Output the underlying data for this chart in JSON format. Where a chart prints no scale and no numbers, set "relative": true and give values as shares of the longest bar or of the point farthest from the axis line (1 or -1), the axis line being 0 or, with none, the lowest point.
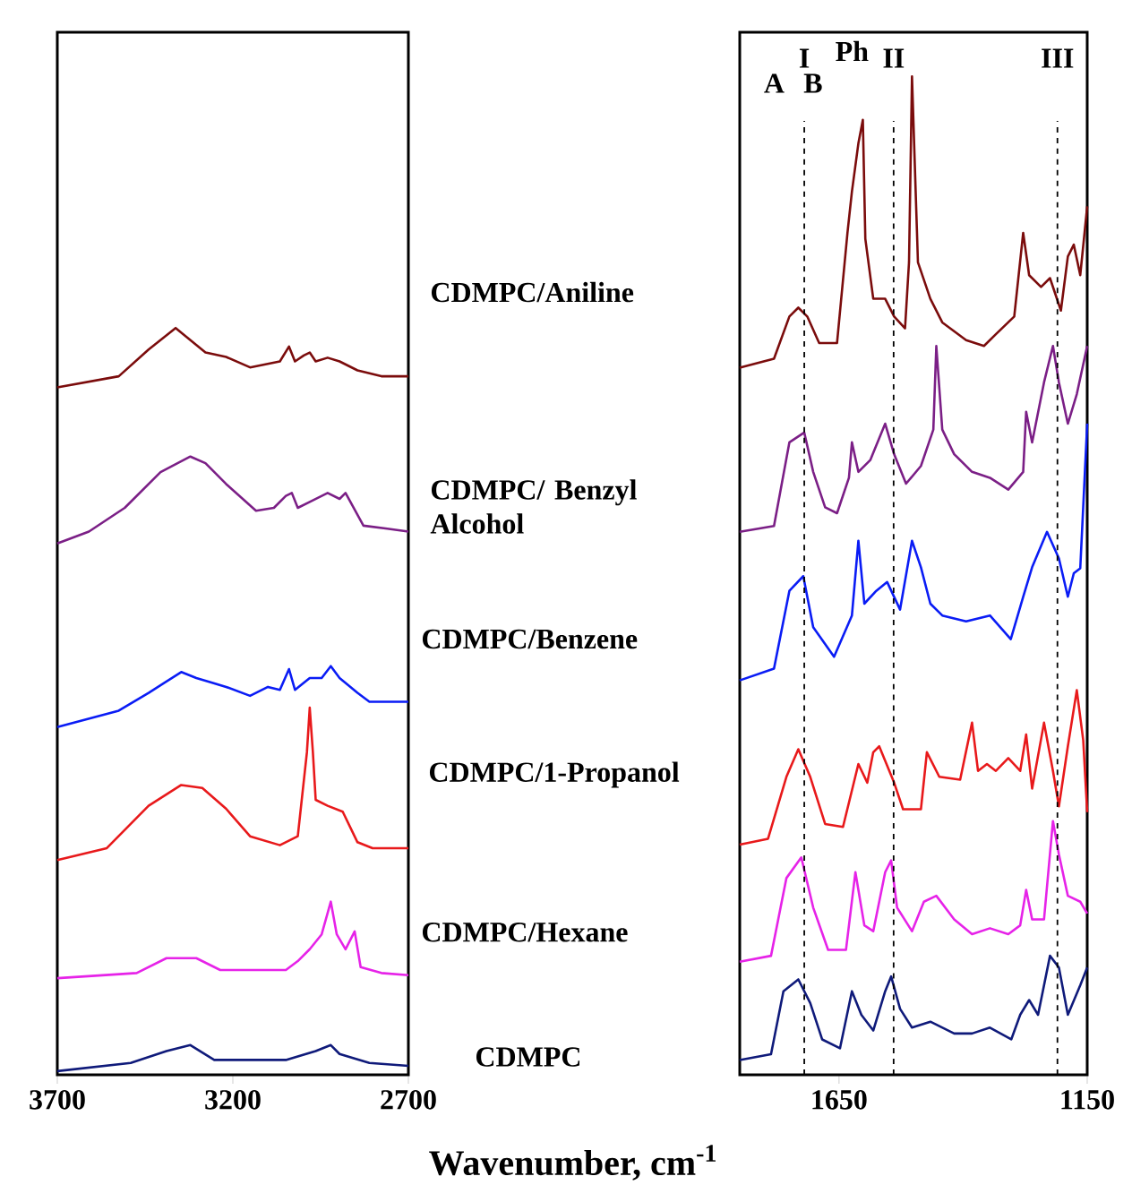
{
  "chart_data": [
    {
      "type": "line",
      "relative": true,
      "xlabel": "Wavenumber, cm$^{-1}$",
      "xlim": [
        3700,
        2700
      ],
      "xticks": [
        3700,
        3200,
        2700
      ],
      "tick_labels": "x",
      "series": [
        {
          "name": "CDMPC/Aniline",
          "color": "#7b0c0c",
          "x": [
            3700,
            3525,
            3440,
            3363,
            3278,
            3219,
            3151,
            3066,
            3040,
            3023,
            2998,
            2981,
            2964,
            2930,
            2896,
            2845,
            2777,
            2700
          ],
          "values": [
            0.92,
            0.935,
            0.971,
            1.0,
            0.967,
            0.961,
            0.947,
            0.955,
            0.975,
            0.955,
            0.963,
            0.967,
            0.955,
            0.96,
            0.955,
            0.943,
            0.935,
            0.935
          ]
        },
        {
          "name": "CDMPC/ Benzyl Alcohol",
          "color": "#7b1f86",
          "x": [
            3700,
            3610,
            3508,
            3406,
            3321,
            3278,
            3219,
            3134,
            3083,
            3049,
            3032,
            3015,
            2981,
            2930,
            2896,
            2879,
            2828,
            2760,
            2700
          ],
          "values": [
            0.71,
            0.726,
            0.758,
            0.806,
            0.827,
            0.818,
            0.79,
            0.754,
            0.758,
            0.774,
            0.778,
            0.758,
            0.766,
            0.778,
            0.77,
            0.778,
            0.734,
            0.73,
            0.726
          ]
        },
        {
          "name": "CDMPC/Benzene",
          "color": "#0a1cf5",
          "x": [
            3700,
            3525,
            3440,
            3347,
            3304,
            3219,
            3151,
            3100,
            3066,
            3040,
            3023,
            2981,
            2947,
            2921,
            2896,
            2845,
            2811,
            2700
          ],
          "values": [
            0.463,
            0.485,
            0.509,
            0.537,
            0.529,
            0.517,
            0.505,
            0.517,
            0.513,
            0.541,
            0.513,
            0.529,
            0.529,
            0.545,
            0.529,
            0.509,
            0.497,
            0.497
          ]
        },
        {
          "name": "CDMPC/1-Propanol",
          "color": "#e8191b",
          "x": [
            3700,
            3559,
            3440,
            3347,
            3287,
            3219,
            3151,
            3066,
            3015,
            2989,
            2981,
            2972,
            2964,
            2930,
            2887,
            2845,
            2802,
            2700
          ],
          "values": [
            0.284,
            0.3,
            0.357,
            0.385,
            0.381,
            0.353,
            0.316,
            0.304,
            0.316,
            0.429,
            0.489,
            0.429,
            0.365,
            0.357,
            0.349,
            0.308,
            0.3,
            0.3
          ]
        },
        {
          "name": "CDMPC/Hexane",
          "color": "#e623e8",
          "x": [
            3700,
            3474,
            3389,
            3304,
            3236,
            3049,
            3015,
            2981,
            2947,
            2921,
            2904,
            2879,
            2853,
            2836,
            2777,
            2700
          ],
          "values": [
            0.125,
            0.132,
            0.152,
            0.152,
            0.136,
            0.136,
            0.148,
            0.164,
            0.184,
            0.228,
            0.184,
            0.164,
            0.188,
            0.14,
            0.132,
            0.129
          ]
        },
        {
          "name": "CDMPC",
          "color": "#0f1a7a",
          "x": [
            3700,
            3491,
            3389,
            3321,
            3253,
            3049,
            2964,
            2921,
            2896,
            2811,
            2700
          ],
          "values": [
            0.0,
            0.011,
            0.027,
            0.035,
            0.015,
            0.015,
            0.027,
            0.035,
            0.023,
            0.011,
            0.007
          ]
        }
      ]
    },
    {
      "type": "line",
      "relative": true,
      "xlim": [
        1850,
        1150
      ],
      "xticks": [
        1650,
        1150
      ],
      "tick_labels": "x",
      "ref_lines": [
        {
          "axis": "x",
          "value": 1720,
          "label": "I",
          "line_style": "dashed"
        },
        {
          "axis": "x",
          "value": 1540,
          "label": "II",
          "line_style": "dashed"
        },
        {
          "axis": "x",
          "value": 1210,
          "label": "III",
          "line_style": "dashed"
        }
      ],
      "annotations": [
        "Ph",
        "A",
        "B"
      ],
      "series": [
        {
          "color": "#7b0c0c",
          "x": [
            1850,
            1781,
            1750,
            1732,
            1714,
            1690,
            1654,
            1633,
            1624,
            1611,
            1602,
            1597,
            1581,
            1557,
            1539,
            1517,
            1509,
            1503,
            1491,
            1466,
            1442,
            1394,
            1358,
            1334,
            1297,
            1279,
            1267,
            1243,
            1225,
            1203,
            1189,
            1177,
            1164,
            1150
          ],
          "values": [
            0.704,
            0.713,
            0.756,
            0.765,
            0.756,
            0.729,
            0.729,
            0.841,
            0.883,
            0.932,
            0.956,
            0.835,
            0.774,
            0.774,
            0.756,
            0.744,
            0.811,
            1.0,
            0.811,
            0.774,
            0.75,
            0.732,
            0.726,
            0.738,
            0.756,
            0.841,
            0.798,
            0.786,
            0.795,
            0.762,
            0.817,
            0.829,
            0.798,
            0.868
          ]
        },
        {
          "color": "#7b1f86",
          "x": [
            1850,
            1781,
            1750,
            1720,
            1702,
            1678,
            1654,
            1630,
            1624,
            1611,
            1587,
            1557,
            1539,
            1515,
            1485,
            1460,
            1454,
            1442,
            1418,
            1382,
            1346,
            1309,
            1279,
            1273,
            1261,
            1237,
            1219,
            1207,
            1189,
            1171,
            1150
          ],
          "values": [
            0.537,
            0.543,
            0.628,
            0.638,
            0.598,
            0.562,
            0.556,
            0.592,
            0.628,
            0.598,
            0.61,
            0.647,
            0.616,
            0.586,
            0.604,
            0.641,
            0.726,
            0.641,
            0.616,
            0.598,
            0.592,
            0.58,
            0.598,
            0.659,
            0.628,
            0.689,
            0.726,
            0.689,
            0.647,
            0.677,
            0.726
          ]
        },
        {
          "color": "#0a1cf5",
          "x": [
            1850,
            1781,
            1750,
            1722,
            1702,
            1660,
            1624,
            1611,
            1599,
            1575,
            1553,
            1527,
            1503,
            1485,
            1466,
            1442,
            1394,
            1346,
            1304,
            1279,
            1261,
            1231,
            1207,
            1189,
            1177,
            1164,
            1150
          ],
          "values": [
            0.386,
            0.398,
            0.477,
            0.492,
            0.44,
            0.41,
            0.452,
            0.528,
            0.464,
            0.477,
            0.486,
            0.458,
            0.528,
            0.501,
            0.464,
            0.452,
            0.446,
            0.452,
            0.428,
            0.471,
            0.501,
            0.537,
            0.51,
            0.471,
            0.495,
            0.5,
            0.647
          ]
        },
        {
          "color": "#e8191b",
          "x": [
            1850,
            1793,
            1756,
            1732,
            1708,
            1678,
            1642,
            1611,
            1593,
            1581,
            1569,
            1539,
            1521,
            1485,
            1473,
            1448,
            1406,
            1382,
            1370,
            1352,
            1334,
            1309,
            1285,
            1273,
            1261,
            1237,
            1219,
            1207,
            1189,
            1171,
            1158,
            1150
          ],
          "values": [
            0.219,
            0.225,
            0.288,
            0.316,
            0.288,
            0.24,
            0.237,
            0.301,
            0.282,
            0.313,
            0.319,
            0.282,
            0.255,
            0.255,
            0.313,
            0.288,
            0.285,
            0.343,
            0.294,
            0.301,
            0.294,
            0.307,
            0.294,
            0.331,
            0.276,
            0.343,
            0.294,
            0.258,
            0.319,
            0.376,
            0.325,
            0.252
          ]
        },
        {
          "color": "#e623e8",
          "x": [
            1850,
            1787,
            1756,
            1726,
            1702,
            1672,
            1636,
            1617,
            1599,
            1581,
            1557,
            1545,
            1533,
            1503,
            1479,
            1454,
            1418,
            1382,
            1346,
            1309,
            1285,
            1273,
            1261,
            1237,
            1219,
            1207,
            1189,
            1164,
            1150
          ],
          "values": [
            0.1,
            0.106,
            0.185,
            0.206,
            0.155,
            0.112,
            0.112,
            0.191,
            0.137,
            0.131,
            0.191,
            0.203,
            0.155,
            0.131,
            0.161,
            0.167,
            0.143,
            0.128,
            0.134,
            0.128,
            0.137,
            0.173,
            0.143,
            0.143,
            0.243,
            0.209,
            0.167,
            0.161,
            0.149
          ]
        },
        {
          "color": "#0f1a7a",
          "x": [
            1850,
            1787,
            1762,
            1732,
            1708,
            1684,
            1648,
            1624,
            1605,
            1581,
            1557,
            1545,
            1527,
            1503,
            1466,
            1418,
            1382,
            1346,
            1303,
            1285,
            1267,
            1249,
            1225,
            1207,
            1189,
            1164,
            1150
          ],
          "values": [
            0.0,
            0.006,
            0.07,
            0.082,
            0.058,
            0.021,
            0.012,
            0.07,
            0.046,
            0.03,
            0.07,
            0.085,
            0.052,
            0.033,
            0.039,
            0.027,
            0.027,
            0.033,
            0.021,
            0.046,
            0.061,
            0.046,
            0.106,
            0.094,
            0.046,
            0.076,
            0.094
          ]
        }
      ]
    }
  ]
}
